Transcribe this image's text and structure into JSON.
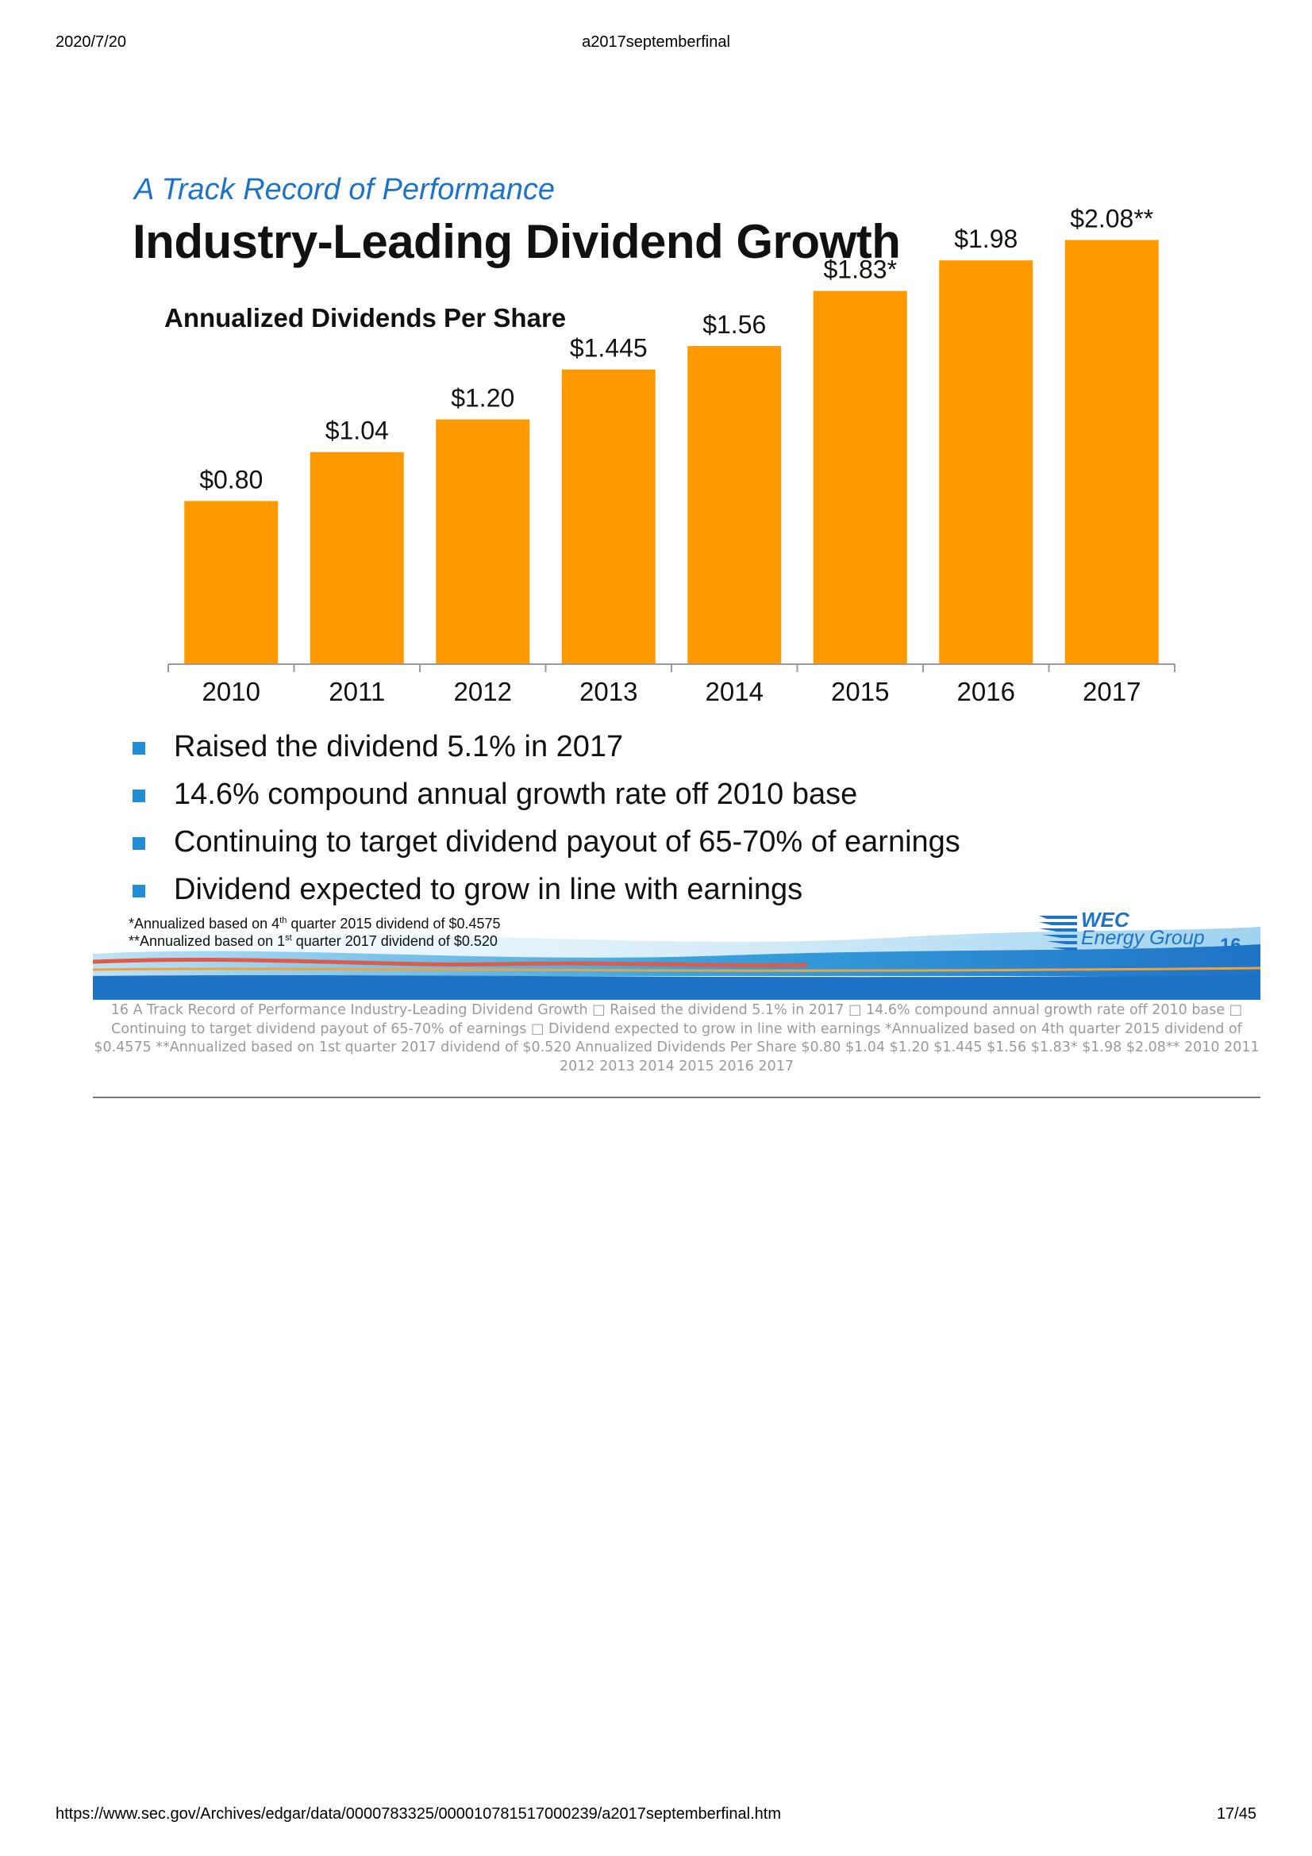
{
  "header": {
    "date": "2020/7/20",
    "doc_title": "a2017septemberfinal"
  },
  "footer": {
    "url": "https://www.sec.gov/Archives/edgar/data/0000783325/000010781517000239/a2017septemberfinal.htm",
    "page": "17/45"
  },
  "slide": {
    "subtitle": "A Track Record of Performance",
    "title": "Industry-Leading Dividend Growth",
    "bullets": [
      "Raised the dividend 5.1% in 2017",
      "14.6% compound annual growth rate off 2010 base",
      "Continuing to target dividend payout of 65-70% of earnings",
      "Dividend expected to grow in line with earnings"
    ],
    "footnote1": {
      "pre": "*Annualized based on 4",
      "sup": "th",
      "post": " quarter 2015 dividend of $0.4575"
    },
    "footnote2": {
      "pre": "**Annualized based on 1",
      "sup": "st",
      "post": " quarter 2017 dividend of $0.520"
    },
    "logo_line1": "WEC",
    "logo_line2": "Energy Group",
    "slide_number": "16"
  },
  "chart_data": {
    "type": "bar",
    "title": "Annualized Dividends Per Share",
    "categories": [
      "2010",
      "2011",
      "2012",
      "2013",
      "2014",
      "2015",
      "2016",
      "2017"
    ],
    "values": [
      0.8,
      1.04,
      1.2,
      1.445,
      1.56,
      1.83,
      1.98,
      2.08
    ],
    "data_labels": [
      "$0.80",
      "$1.04",
      "$1.20",
      "$1.445",
      "$1.56",
      "$1.83*",
      "$1.98",
      "$2.08**"
    ],
    "bar_color": "#ff9900",
    "grid": false,
    "legend": "none"
  },
  "alt_text": "16  A Track Record of Performance  Industry-Leading Dividend Growth  □ Raised the dividend 5.1% in 2017  □ 14.6% compound annual growth rate off 2010 base  □ Continuing to target dividend payout of 65-70% of earnings  □ Dividend expected to grow in line with earnings  *Annualized based on 4th quarter 2015 dividend of $0.4575  **Annualized based on 1st quarter 2017 dividend of $0.520  Annualized Dividends Per Share  $0.80  $1.04  $1.20  $1.445  $1.56  $1.83*  $1.98  $2.08**  2010 2011 2012 2013 2014 2015 2016 2017"
}
